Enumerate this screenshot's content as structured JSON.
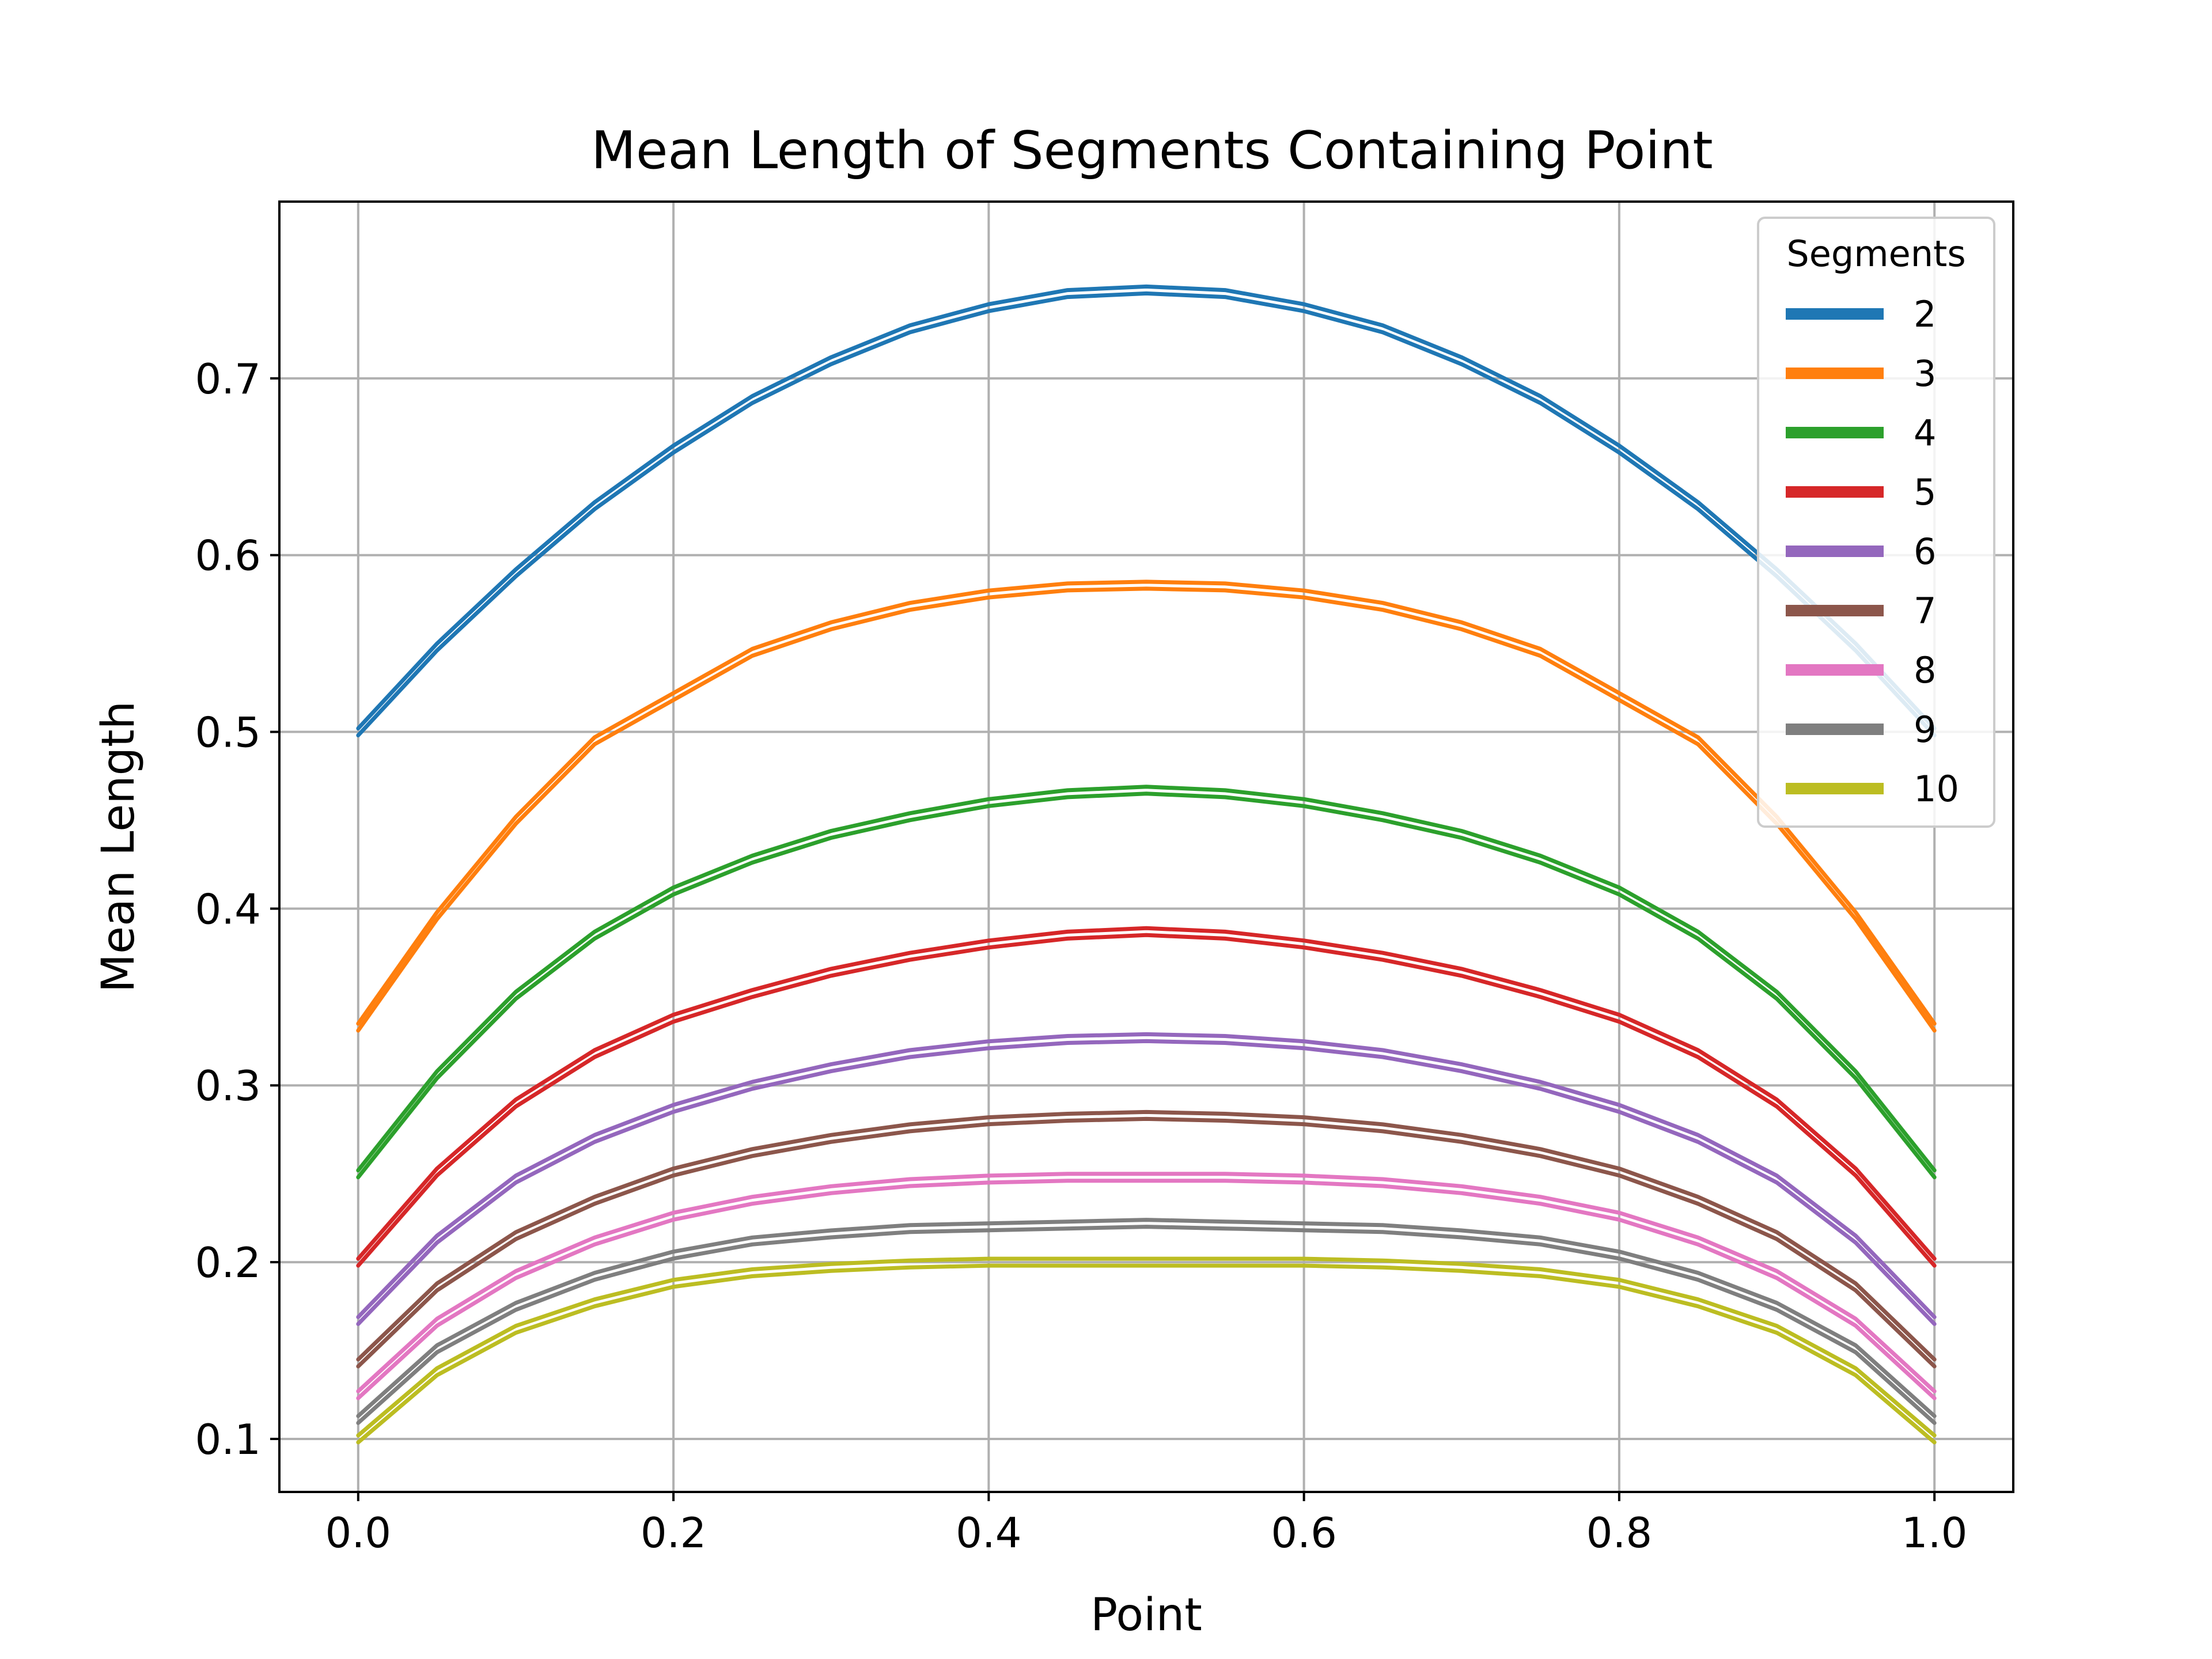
{
  "chart_data": {
    "type": "line",
    "title": "Mean Length of Segments Containing Point",
    "xlabel": "Point",
    "ylabel": "Mean Length",
    "xlim": [
      -0.05,
      1.05
    ],
    "ylim": [
      0.07,
      0.8
    ],
    "xticks": [
      "0.0",
      "0.2",
      "0.4",
      "0.6",
      "0.8",
      "1.0"
    ],
    "yticks": [
      "0.1",
      "0.2",
      "0.3",
      "0.4",
      "0.5",
      "0.6",
      "0.7"
    ],
    "grid": true,
    "legend": {
      "title": "Segments",
      "placement": "top-right"
    },
    "x": [
      0.0,
      0.05,
      0.1,
      0.15,
      0.2,
      0.25,
      0.3,
      0.35,
      0.4,
      0.45,
      0.5,
      0.55,
      0.6,
      0.65,
      0.7,
      0.75,
      0.8,
      0.85,
      0.9,
      0.95,
      1.0
    ],
    "series": [
      {
        "name": "2",
        "color": "#1f77b4",
        "values": [
          0.5,
          0.548,
          0.59,
          0.628,
          0.66,
          0.688,
          0.71,
          0.728,
          0.74,
          0.748,
          0.75,
          0.748,
          0.74,
          0.728,
          0.71,
          0.688,
          0.66,
          0.628,
          0.59,
          0.548,
          0.5
        ]
      },
      {
        "name": "3",
        "color": "#ff7f0e",
        "values": [
          0.333,
          0.396,
          0.45,
          0.495,
          0.52,
          0.545,
          0.56,
          0.571,
          0.578,
          0.582,
          0.583,
          0.582,
          0.578,
          0.571,
          0.56,
          0.545,
          0.52,
          0.495,
          0.45,
          0.396,
          0.333
        ]
      },
      {
        "name": "4",
        "color": "#2ca02c",
        "values": [
          0.25,
          0.306,
          0.351,
          0.385,
          0.41,
          0.428,
          0.442,
          0.452,
          0.46,
          0.465,
          0.467,
          0.465,
          0.46,
          0.452,
          0.442,
          0.428,
          0.41,
          0.385,
          0.351,
          0.306,
          0.25
        ]
      },
      {
        "name": "5",
        "color": "#d62728",
        "values": [
          0.2,
          0.251,
          0.29,
          0.318,
          0.338,
          0.352,
          0.364,
          0.373,
          0.38,
          0.385,
          0.387,
          0.385,
          0.38,
          0.373,
          0.364,
          0.352,
          0.338,
          0.318,
          0.29,
          0.251,
          0.2
        ]
      },
      {
        "name": "6",
        "color": "#9467bd",
        "values": [
          0.167,
          0.213,
          0.247,
          0.27,
          0.287,
          0.3,
          0.31,
          0.318,
          0.323,
          0.326,
          0.327,
          0.326,
          0.323,
          0.318,
          0.31,
          0.3,
          0.287,
          0.27,
          0.247,
          0.213,
          0.167
        ]
      },
      {
        "name": "7",
        "color": "#8c564b",
        "values": [
          0.143,
          0.186,
          0.215,
          0.235,
          0.251,
          0.262,
          0.27,
          0.276,
          0.28,
          0.282,
          0.283,
          0.282,
          0.28,
          0.276,
          0.27,
          0.262,
          0.251,
          0.235,
          0.215,
          0.186,
          0.143
        ]
      },
      {
        "name": "8",
        "color": "#e377c2",
        "values": [
          0.125,
          0.166,
          0.193,
          0.212,
          0.226,
          0.235,
          0.241,
          0.245,
          0.247,
          0.248,
          0.248,
          0.248,
          0.247,
          0.245,
          0.241,
          0.235,
          0.226,
          0.212,
          0.193,
          0.166,
          0.125
        ]
      },
      {
        "name": "9",
        "color": "#7f7f7f",
        "values": [
          0.111,
          0.151,
          0.175,
          0.192,
          0.204,
          0.212,
          0.216,
          0.219,
          0.22,
          0.221,
          0.222,
          0.221,
          0.22,
          0.219,
          0.216,
          0.212,
          0.204,
          0.192,
          0.175,
          0.151,
          0.111
        ]
      },
      {
        "name": "10",
        "color": "#bcbd22",
        "values": [
          0.1,
          0.138,
          0.162,
          0.177,
          0.188,
          0.194,
          0.197,
          0.199,
          0.2,
          0.2,
          0.2,
          0.2,
          0.2,
          0.199,
          0.197,
          0.194,
          0.188,
          0.177,
          0.162,
          0.138,
          0.1
        ]
      }
    ]
  }
}
